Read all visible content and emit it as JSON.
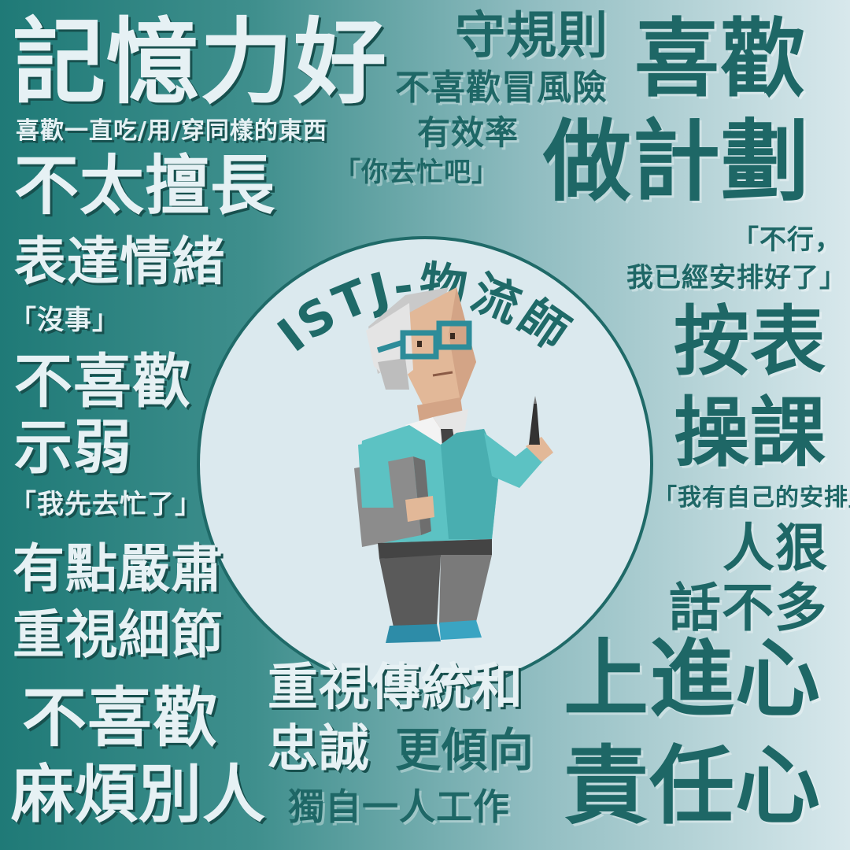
{
  "title": "ISTJ-物流師",
  "phrases": {
    "memory": "記憶力好",
    "rules": "守規則",
    "no_risk": "不喜歡冒風險",
    "like": "喜歡",
    "plan": "做計劃",
    "same_things": "喜歡一直吃/用/穿同樣的東西",
    "efficient": "有效率",
    "go_busy": "「你去忙吧」",
    "not_good": "不太擅長",
    "express": "表達情緒",
    "no_way_1": "「不行，",
    "no_way_2": "我已經安排好了」",
    "nothing": "「沒事」",
    "schedule_1": "按表",
    "schedule_2": "操課",
    "dislike_weak_1": "不喜歡",
    "dislike_weak_2": "示弱",
    "my_plan": "「我有自己的安排」",
    "me_busy": "「我先去忙了」",
    "tough": "人狠",
    "few_words": "話不多",
    "serious": "有點嚴肅",
    "detail": "重視細節",
    "tradition_1": "重視傳統和",
    "tradition_2": "忠誠",
    "prefer": "更傾向",
    "alone": "獨自一人工作",
    "ambition": "上進心",
    "dislike_trouble_1": "不喜歡",
    "dislike_trouble_2": "麻煩別人",
    "responsibility": "責任心"
  },
  "colors": {
    "text_light": "#e6f1f4",
    "text_dark": "#1e6766",
    "circle_fill": "#dbe9ee",
    "title_color": "#1f6a68"
  }
}
